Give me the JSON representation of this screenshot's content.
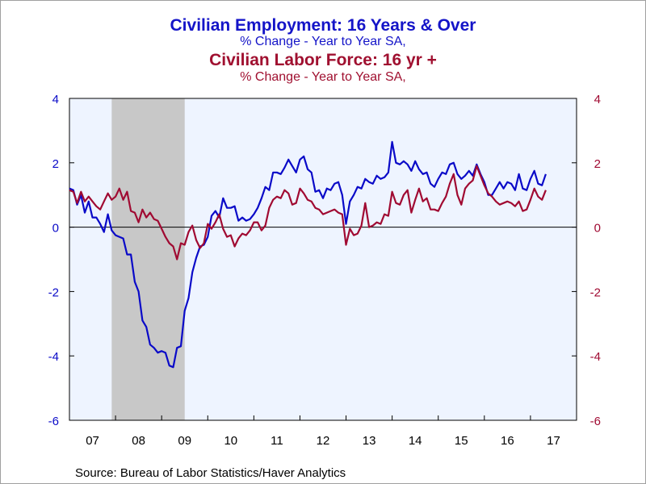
{
  "titles": {
    "series1_title": "Civilian Employment: 16 Years & Over",
    "series1_subtitle": "% Change - Year to Year    SA,",
    "series2_title": "Civilian Labor Force: 16 yr +",
    "series2_subtitle": "% Change - Year to Year    SA,"
  },
  "source": "Source:  Bureau of Labor Statistics/Haver Analytics",
  "colors": {
    "employment": "#0a0ac8",
    "labor_force": "#a00a32",
    "recession": "#c8c8c8",
    "plot_bg": "#eef4ff",
    "zero_line": "#000000"
  },
  "chart_data": {
    "type": "line",
    "x_start": "2007-01",
    "x_end": "2017-12",
    "x_ticks": [
      "07",
      "08",
      "09",
      "10",
      "11",
      "12",
      "13",
      "14",
      "15",
      "16",
      "17"
    ],
    "y_left": {
      "ylim": [
        -6,
        4
      ],
      "ticks": [
        4,
        2,
        0,
        -2,
        -4,
        -6
      ]
    },
    "y_right": {
      "ylim": [
        -6,
        4
      ],
      "ticks": [
        4,
        2,
        0,
        -2,
        -4,
        -6
      ]
    },
    "grid": false,
    "recession_shading": {
      "start": "2007-12",
      "end": "2009-06"
    },
    "series": [
      {
        "name": "Civilian Employment: 16 Years & Over",
        "axis": "left",
        "points": [
          [
            "2007-01",
            1.2
          ],
          [
            "2007-02",
            1.15
          ],
          [
            "2007-03",
            0.7
          ],
          [
            "2007-04",
            1.0
          ],
          [
            "2007-05",
            0.45
          ],
          [
            "2007-06",
            0.8
          ],
          [
            "2007-07",
            0.3
          ],
          [
            "2007-08",
            0.3
          ],
          [
            "2007-09",
            0.1
          ],
          [
            "2007-10",
            -0.15
          ],
          [
            "2007-11",
            0.4
          ],
          [
            "2007-12",
            -0.1
          ],
          [
            "2008-01",
            -0.25
          ],
          [
            "2008-02",
            -0.3
          ],
          [
            "2008-03",
            -0.35
          ],
          [
            "2008-04",
            -0.85
          ],
          [
            "2008-05",
            -0.85
          ],
          [
            "2008-06",
            -1.7
          ],
          [
            "2008-07",
            -2.0
          ],
          [
            "2008-08",
            -2.9
          ],
          [
            "2008-09",
            -3.1
          ],
          [
            "2008-10",
            -3.65
          ],
          [
            "2008-11",
            -3.75
          ],
          [
            "2008-12",
            -3.9
          ],
          [
            "2009-01",
            -3.85
          ],
          [
            "2009-02",
            -3.9
          ],
          [
            "2009-03",
            -4.3
          ],
          [
            "2009-04",
            -4.35
          ],
          [
            "2009-05",
            -3.75
          ],
          [
            "2009-06",
            -3.7
          ],
          [
            "2009-07",
            -2.6
          ],
          [
            "2009-08",
            -2.2
          ],
          [
            "2009-09",
            -1.4
          ],
          [
            "2009-10",
            -0.95
          ],
          [
            "2009-11",
            -0.6
          ],
          [
            "2009-12",
            -0.55
          ],
          [
            "2010-01",
            -0.3
          ],
          [
            "2010-02",
            0.35
          ],
          [
            "2010-03",
            0.5
          ],
          [
            "2010-04",
            0.3
          ],
          [
            "2010-05",
            0.9
          ],
          [
            "2010-06",
            0.6
          ],
          [
            "2010-07",
            0.6
          ],
          [
            "2010-08",
            0.65
          ],
          [
            "2010-09",
            0.2
          ],
          [
            "2010-10",
            0.3
          ],
          [
            "2010-11",
            0.2
          ],
          [
            "2010-12",
            0.25
          ],
          [
            "2011-01",
            0.4
          ],
          [
            "2011-02",
            0.6
          ],
          [
            "2011-03",
            0.9
          ],
          [
            "2011-04",
            1.25
          ],
          [
            "2011-05",
            1.15
          ],
          [
            "2011-06",
            1.7
          ],
          [
            "2011-07",
            1.7
          ],
          [
            "2011-08",
            1.65
          ],
          [
            "2011-09",
            1.85
          ],
          [
            "2011-10",
            2.1
          ],
          [
            "2011-11",
            1.9
          ],
          [
            "2011-12",
            1.7
          ],
          [
            "2012-01",
            2.1
          ],
          [
            "2012-02",
            2.2
          ],
          [
            "2012-03",
            1.8
          ],
          [
            "2012-04",
            1.7
          ],
          [
            "2012-05",
            1.1
          ],
          [
            "2012-06",
            1.15
          ],
          [
            "2012-07",
            0.9
          ],
          [
            "2012-08",
            1.2
          ],
          [
            "2012-09",
            1.15
          ],
          [
            "2012-10",
            1.35
          ],
          [
            "2012-11",
            1.4
          ],
          [
            "2012-12",
            1.0
          ],
          [
            "2013-01",
            0.1
          ],
          [
            "2013-02",
            0.8
          ],
          [
            "2013-03",
            1.0
          ],
          [
            "2013-04",
            1.25
          ],
          [
            "2013-05",
            1.2
          ],
          [
            "2013-06",
            1.5
          ],
          [
            "2013-07",
            1.4
          ],
          [
            "2013-08",
            1.35
          ],
          [
            "2013-09",
            1.6
          ],
          [
            "2013-10",
            1.5
          ],
          [
            "2013-11",
            1.55
          ],
          [
            "2013-12",
            1.7
          ],
          [
            "2014-01",
            2.65
          ],
          [
            "2014-02",
            2.0
          ],
          [
            "2014-03",
            1.95
          ],
          [
            "2014-04",
            2.05
          ],
          [
            "2014-05",
            1.95
          ],
          [
            "2014-06",
            1.75
          ],
          [
            "2014-07",
            2.05
          ],
          [
            "2014-08",
            1.8
          ],
          [
            "2014-09",
            1.65
          ],
          [
            "2014-10",
            1.7
          ],
          [
            "2014-11",
            1.35
          ],
          [
            "2014-12",
            1.25
          ],
          [
            "2015-01",
            1.5
          ],
          [
            "2015-02",
            1.7
          ],
          [
            "2015-03",
            1.65
          ],
          [
            "2015-04",
            1.95
          ],
          [
            "2015-05",
            2.0
          ],
          [
            "2015-06",
            1.65
          ],
          [
            "2015-07",
            1.5
          ],
          [
            "2015-08",
            1.6
          ],
          [
            "2015-09",
            1.75
          ],
          [
            "2015-10",
            1.6
          ],
          [
            "2015-11",
            1.95
          ],
          [
            "2015-12",
            1.65
          ],
          [
            "2016-01",
            1.4
          ],
          [
            "2016-02",
            1.0
          ],
          [
            "2016-03",
            1.0
          ],
          [
            "2016-04",
            1.2
          ],
          [
            "2016-05",
            1.4
          ],
          [
            "2016-06",
            1.2
          ],
          [
            "2016-07",
            1.4
          ],
          [
            "2016-08",
            1.35
          ],
          [
            "2016-09",
            1.15
          ],
          [
            "2016-10",
            1.65
          ],
          [
            "2016-11",
            1.2
          ],
          [
            "2016-12",
            1.15
          ],
          [
            "2017-01",
            1.5
          ],
          [
            "2017-02",
            1.75
          ],
          [
            "2017-03",
            1.35
          ],
          [
            "2017-04",
            1.3
          ],
          [
            "2017-05",
            1.65
          ]
        ]
      },
      {
        "name": "Civilian Labor Force: 16 yr +",
        "axis": "right",
        "points": [
          [
            "2007-01",
            1.15
          ],
          [
            "2007-02",
            1.1
          ],
          [
            "2007-03",
            0.75
          ],
          [
            "2007-04",
            1.1
          ],
          [
            "2007-05",
            0.8
          ],
          [
            "2007-06",
            0.95
          ],
          [
            "2007-07",
            0.8
          ],
          [
            "2007-08",
            0.65
          ],
          [
            "2007-09",
            0.55
          ],
          [
            "2007-10",
            0.8
          ],
          [
            "2007-11",
            1.05
          ],
          [
            "2007-12",
            0.85
          ],
          [
            "2008-01",
            0.95
          ],
          [
            "2008-02",
            1.2
          ],
          [
            "2008-03",
            0.85
          ],
          [
            "2008-04",
            1.1
          ],
          [
            "2008-05",
            0.5
          ],
          [
            "2008-06",
            0.45
          ],
          [
            "2008-07",
            0.15
          ],
          [
            "2008-08",
            0.55
          ],
          [
            "2008-09",
            0.3
          ],
          [
            "2008-10",
            0.45
          ],
          [
            "2008-11",
            0.25
          ],
          [
            "2008-12",
            0.2
          ],
          [
            "2009-01",
            -0.05
          ],
          [
            "2009-02",
            -0.3
          ],
          [
            "2009-03",
            -0.5
          ],
          [
            "2009-04",
            -0.6
          ],
          [
            "2009-05",
            -1.0
          ],
          [
            "2009-06",
            -0.5
          ],
          [
            "2009-07",
            -0.55
          ],
          [
            "2009-08",
            -0.15
          ],
          [
            "2009-09",
            0.05
          ],
          [
            "2009-10",
            -0.4
          ],
          [
            "2009-11",
            -0.65
          ],
          [
            "2009-12",
            -0.5
          ],
          [
            "2010-01",
            0.1
          ],
          [
            "2010-02",
            -0.05
          ],
          [
            "2010-03",
            0.15
          ],
          [
            "2010-04",
            0.4
          ],
          [
            "2010-05",
            -0.05
          ],
          [
            "2010-06",
            -0.3
          ],
          [
            "2010-07",
            -0.25
          ],
          [
            "2010-08",
            -0.6
          ],
          [
            "2010-09",
            -0.35
          ],
          [
            "2010-10",
            -0.2
          ],
          [
            "2010-11",
            -0.25
          ],
          [
            "2010-12",
            -0.1
          ],
          [
            "2011-01",
            0.15
          ],
          [
            "2011-02",
            0.15
          ],
          [
            "2011-03",
            -0.1
          ],
          [
            "2011-04",
            0.05
          ],
          [
            "2011-05",
            0.6
          ],
          [
            "2011-06",
            0.85
          ],
          [
            "2011-07",
            0.95
          ],
          [
            "2011-08",
            0.9
          ],
          [
            "2011-09",
            1.15
          ],
          [
            "2011-10",
            1.05
          ],
          [
            "2011-11",
            0.7
          ],
          [
            "2011-12",
            0.75
          ],
          [
            "2012-01",
            1.2
          ],
          [
            "2012-02",
            1.05
          ],
          [
            "2012-03",
            0.85
          ],
          [
            "2012-04",
            0.8
          ],
          [
            "2012-05",
            0.6
          ],
          [
            "2012-06",
            0.55
          ],
          [
            "2012-07",
            0.4
          ],
          [
            "2012-08",
            0.45
          ],
          [
            "2012-09",
            0.5
          ],
          [
            "2012-10",
            0.55
          ],
          [
            "2012-11",
            0.45
          ],
          [
            "2012-12",
            0.4
          ],
          [
            "2013-01",
            -0.55
          ],
          [
            "2013-02",
            -0.05
          ],
          [
            "2013-03",
            -0.25
          ],
          [
            "2013-04",
            -0.2
          ],
          [
            "2013-05",
            0.05
          ],
          [
            "2013-06",
            0.75
          ],
          [
            "2013-07",
            0.0
          ],
          [
            "2013-08",
            0.05
          ],
          [
            "2013-09",
            0.15
          ],
          [
            "2013-10",
            0.1
          ],
          [
            "2013-11",
            0.4
          ],
          [
            "2013-12",
            0.35
          ],
          [
            "2014-01",
            1.1
          ],
          [
            "2014-02",
            0.75
          ],
          [
            "2014-03",
            0.7
          ],
          [
            "2014-04",
            1.0
          ],
          [
            "2014-05",
            1.15
          ],
          [
            "2014-06",
            0.45
          ],
          [
            "2014-07",
            0.85
          ],
          [
            "2014-08",
            1.2
          ],
          [
            "2014-09",
            0.8
          ],
          [
            "2014-10",
            0.9
          ],
          [
            "2014-11",
            0.55
          ],
          [
            "2014-12",
            0.55
          ],
          [
            "2015-01",
            0.5
          ],
          [
            "2015-02",
            0.75
          ],
          [
            "2015-03",
            0.95
          ],
          [
            "2015-04",
            1.35
          ],
          [
            "2015-05",
            1.65
          ],
          [
            "2015-06",
            1.0
          ],
          [
            "2015-07",
            0.7
          ],
          [
            "2015-08",
            1.2
          ],
          [
            "2015-09",
            1.35
          ],
          [
            "2015-10",
            1.45
          ],
          [
            "2015-11",
            1.9
          ],
          [
            "2015-12",
            1.6
          ],
          [
            "2016-01",
            1.3
          ],
          [
            "2016-02",
            1.05
          ],
          [
            "2016-03",
            0.95
          ],
          [
            "2016-04",
            0.8
          ],
          [
            "2016-05",
            0.7
          ],
          [
            "2016-06",
            0.75
          ],
          [
            "2016-07",
            0.8
          ],
          [
            "2016-08",
            0.75
          ],
          [
            "2016-09",
            0.65
          ],
          [
            "2016-10",
            0.8
          ],
          [
            "2016-11",
            0.5
          ],
          [
            "2016-12",
            0.55
          ],
          [
            "2017-01",
            0.85
          ],
          [
            "2017-02",
            1.2
          ],
          [
            "2017-03",
            0.95
          ],
          [
            "2017-04",
            0.85
          ],
          [
            "2017-05",
            1.15
          ]
        ]
      }
    ]
  }
}
